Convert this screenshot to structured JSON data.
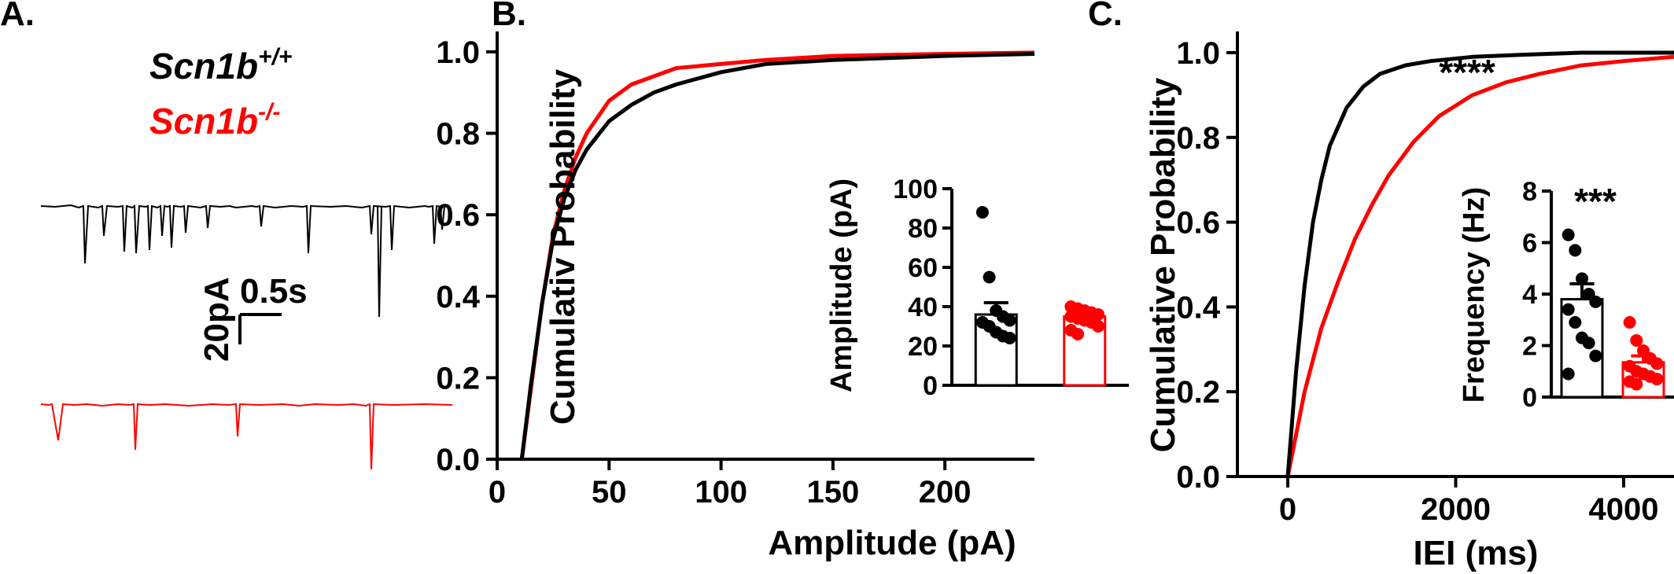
{
  "colors": {
    "wt": "#000000",
    "ko": "#ff0000",
    "axis": "#000000"
  },
  "panel_a": {
    "label": "A.",
    "legend": {
      "wt_base": "Scn1b",
      "wt_sup": "+/+",
      "ko_base": "Scn1b",
      "ko_sup": "-/-"
    },
    "scalebar": {
      "y_label": "20pA",
      "x_label": "0.5s"
    }
  },
  "panel_b": {
    "label": "B."
  },
  "panel_c": {
    "label": "C."
  },
  "chart_data": [
    {
      "id": "B-main",
      "type": "line",
      "title": "",
      "xlabel": "Amplitude (pA)",
      "ylabel": "Cumulativ Probability",
      "xlim": [
        0,
        240
      ],
      "ylim": [
        0,
        1.05
      ],
      "xticks": [
        0,
        50,
        100,
        150,
        200
      ],
      "yticks": [
        0.0,
        0.2,
        0.4,
        0.6,
        0.8,
        1.0
      ],
      "xtick_labels": [
        "0",
        "50",
        "100",
        "150",
        "200"
      ],
      "ytick_labels": [
        "0.0",
        "0.2",
        "0.4",
        "0.6",
        "0.8",
        "1.0"
      ],
      "series": [
        {
          "color": "black",
          "x": [
            11,
            15,
            20,
            25,
            30,
            35,
            40,
            50,
            60,
            70,
            80,
            100,
            120,
            150,
            200,
            240
          ],
          "y": [
            0.0,
            0.18,
            0.38,
            0.54,
            0.64,
            0.71,
            0.76,
            0.83,
            0.87,
            0.9,
            0.92,
            0.95,
            0.97,
            0.98,
            0.99,
            0.995
          ]
        },
        {
          "color": "red",
          "x": [
            11,
            15,
            20,
            25,
            30,
            35,
            40,
            50,
            60,
            70,
            80,
            100,
            120,
            150,
            200,
            240
          ],
          "y": [
            0.0,
            0.17,
            0.38,
            0.55,
            0.66,
            0.74,
            0.8,
            0.88,
            0.92,
            0.94,
            0.96,
            0.97,
            0.98,
            0.99,
            0.995,
            0.998
          ]
        }
      ]
    },
    {
      "id": "B-inset",
      "type": "bar",
      "ylabel": "Amplitude (pA)",
      "ylim": [
        0,
        100
      ],
      "yticks": [
        0,
        20,
        40,
        60,
        80,
        100
      ],
      "ytick_labels": [
        "0",
        "20",
        "40",
        "60",
        "80",
        "100"
      ],
      "bars": [
        {
          "color": "black",
          "mean": 36,
          "sem": 6,
          "points": [
            88,
            55,
            38,
            35,
            33,
            32,
            30,
            27,
            25,
            24
          ]
        },
        {
          "color": "red",
          "mean": 35,
          "sem": 1.5,
          "points": [
            40,
            39,
            38,
            37,
            36,
            35,
            34,
            33,
            32,
            30,
            28,
            26
          ]
        }
      ]
    },
    {
      "id": "C-main",
      "type": "line",
      "title": "",
      "xlabel": "IEI (ms)",
      "ylabel": "Cumulative Probability",
      "annotation": "****",
      "xlim": [
        -600,
        4600
      ],
      "ylim": [
        0,
        1.05
      ],
      "xticks": [
        0,
        2000,
        4000
      ],
      "yticks": [
        0.0,
        0.2,
        0.4,
        0.6,
        0.8,
        1.0
      ],
      "xtick_labels": [
        "0",
        "2000",
        "4000"
      ],
      "ytick_labels": [
        "0.0",
        "0.2",
        "0.4",
        "0.6",
        "0.8",
        "1.0"
      ],
      "series": [
        {
          "color": "black",
          "x": [
            0,
            100,
            200,
            300,
            400,
            500,
            700,
            900,
            1100,
            1400,
            1700,
            2200,
            2800,
            3500,
            4600
          ],
          "y": [
            0.0,
            0.25,
            0.45,
            0.6,
            0.7,
            0.78,
            0.87,
            0.92,
            0.95,
            0.97,
            0.98,
            0.99,
            0.995,
            1.0,
            1.0
          ]
        },
        {
          "color": "red",
          "x": [
            0,
            100,
            200,
            400,
            600,
            800,
            1000,
            1200,
            1500,
            1800,
            2200,
            2600,
            3000,
            3500,
            4000,
            4600
          ],
          "y": [
            0.0,
            0.1,
            0.2,
            0.35,
            0.46,
            0.56,
            0.64,
            0.71,
            0.79,
            0.85,
            0.9,
            0.93,
            0.95,
            0.97,
            0.98,
            0.99
          ]
        }
      ]
    },
    {
      "id": "C-inset",
      "type": "bar",
      "ylabel": "Frequency (Hz)",
      "annotation": "***",
      "ylim": [
        0,
        8
      ],
      "yticks": [
        0,
        2,
        4,
        6,
        8
      ],
      "ytick_labels": [
        "0",
        "2",
        "4",
        "6",
        "8"
      ],
      "bars": [
        {
          "color": "black",
          "mean": 3.8,
          "sem": 0.6,
          "points": [
            6.3,
            5.7,
            4.6,
            4.0,
            3.7,
            3.4,
            2.9,
            2.3,
            2.1,
            1.6,
            0.9
          ]
        },
        {
          "color": "red",
          "mean": 1.35,
          "sem": 0.25,
          "points": [
            2.9,
            2.2,
            1.8,
            1.5,
            1.3,
            1.2,
            1.0,
            0.9,
            0.8,
            0.7,
            0.6,
            0.5
          ]
        }
      ]
    }
  ]
}
